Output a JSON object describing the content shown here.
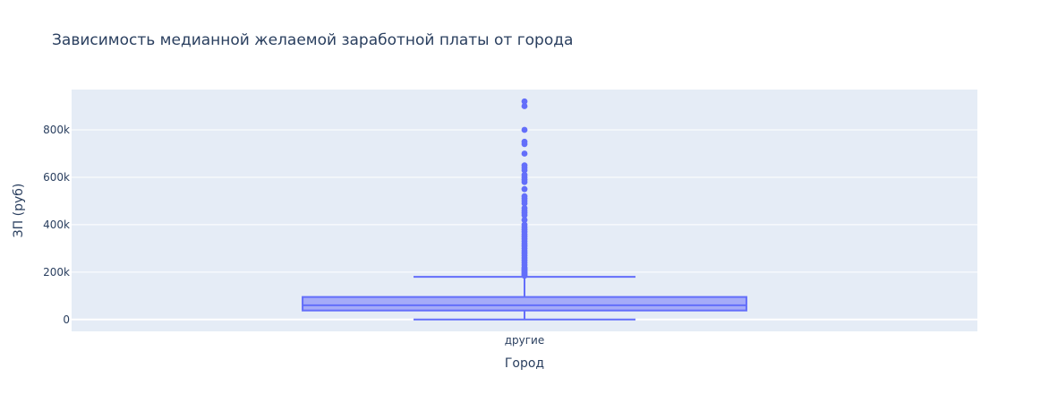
{
  "chart_data": {
    "type": "box",
    "title": "Зависимость медианной желаемой заработной платы от города",
    "xlabel": "Город",
    "ylabel": "ЗП (руб)",
    "categories": [
      "другие"
    ],
    "ylim": [
      -50000,
      970000
    ],
    "yticks": [
      0,
      200000,
      400000,
      600000,
      800000
    ],
    "ytick_labels": [
      "0",
      "200k",
      "400k",
      "600k",
      "800k"
    ],
    "grid": true,
    "colors": {
      "box_line": "#636efa",
      "box_fill": "#a5abf8",
      "plot_bg": "#e5ecf6",
      "grid": "#ffffff",
      "text": "#2a3f5f"
    },
    "series": [
      {
        "category": "другие",
        "min": 0,
        "q1": 38000,
        "median": 60000,
        "q3": 95000,
        "upper_fence": 180000,
        "outliers": [
          185000,
          190000,
          195000,
          200000,
          205000,
          210000,
          215000,
          220000,
          230000,
          240000,
          250000,
          260000,
          270000,
          280000,
          290000,
          300000,
          310000,
          320000,
          330000,
          340000,
          350000,
          360000,
          370000,
          380000,
          390000,
          400000,
          420000,
          440000,
          450000,
          460000,
          470000,
          490000,
          500000,
          510000,
          520000,
          550000,
          580000,
          590000,
          600000,
          610000,
          630000,
          640000,
          650000,
          700000,
          740000,
          750000,
          800000,
          900000,
          920000
        ]
      }
    ]
  }
}
